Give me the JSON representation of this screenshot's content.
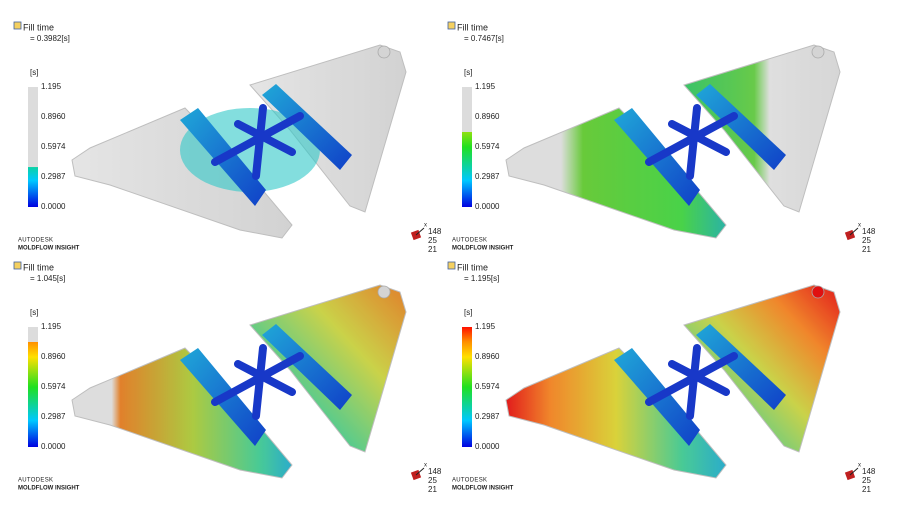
{
  "panels": [
    {
      "title": "Fill time",
      "time": "= 0.3982[s]",
      "unit": "[s]",
      "legend": [
        "1.195",
        "0.8960",
        "0.5974",
        "0.2987",
        "0.0000"
      ],
      "brand": "AUTODESK",
      "product": "MOLDFLOW INSIGHT",
      "triad_axis": "x",
      "triad": [
        "148",
        "25",
        "21"
      ]
    },
    {
      "title": "Fill time",
      "time": "= 0.7467[s]",
      "unit": "[s]",
      "legend": [
        "1.195",
        "0.8960",
        "0.5974",
        "0.2987",
        "0.0000"
      ],
      "brand": "AUTODESK",
      "product": "MOLDFLOW INSIGHT",
      "triad_axis": "x",
      "triad": [
        "148",
        "25",
        "21"
      ]
    },
    {
      "title": "Fill time",
      "time": "= 1.045[s]",
      "unit": "[s]",
      "legend": [
        "1.195",
        "0.8960",
        "0.5974",
        "0.2987",
        "0.0000"
      ],
      "brand": "AUTODESK",
      "product": "MOLDFLOW INSIGHT",
      "triad_axis": "x",
      "triad": [
        "148",
        "25",
        "21"
      ]
    },
    {
      "title": "Fill time",
      "time": "= 1.195[s]",
      "unit": "[s]",
      "legend": [
        "1.195",
        "0.8960",
        "0.5974",
        "0.2987",
        "0.0000"
      ],
      "brand": "AUTODESK",
      "product": "MOLDFLOW INSIGHT",
      "triad_axis": "x",
      "triad": [
        "148",
        "25",
        "21"
      ]
    }
  ]
}
